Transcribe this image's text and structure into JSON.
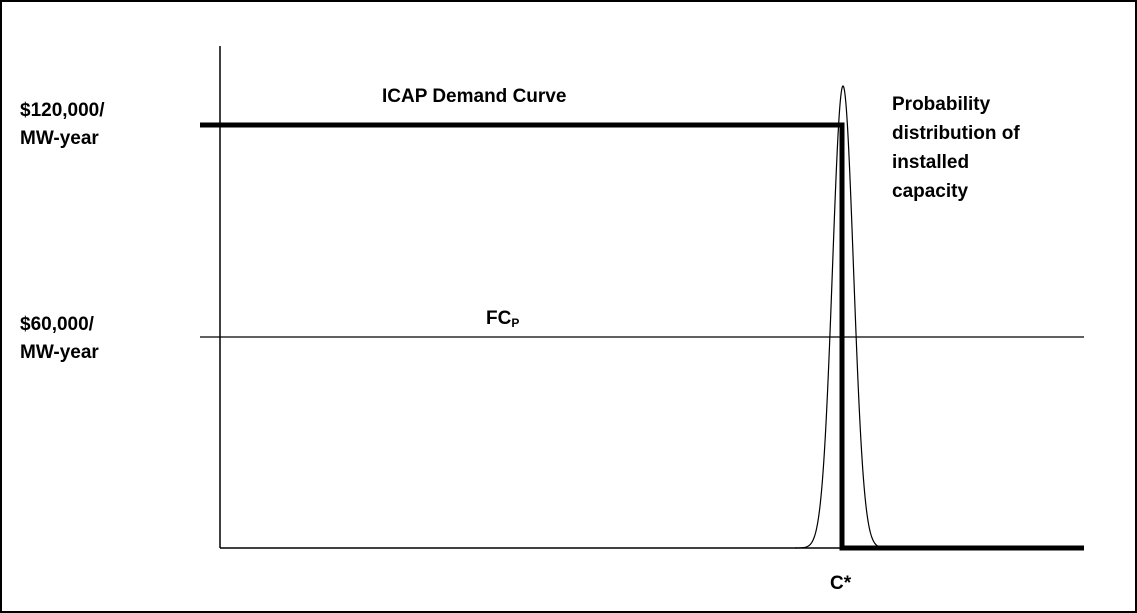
{
  "chart_data": {
    "type": "line",
    "title": "",
    "xlabel": "",
    "ylabel": "",
    "y_ticks": [
      {
        "value": 120000,
        "line1": "$120,000/",
        "line2": "MW-year"
      },
      {
        "value": 60000,
        "line1": "$60,000/",
        "line2": "MW-year"
      }
    ],
    "x_tick": {
      "label": "C*"
    },
    "series": [
      {
        "name": "ICAP Demand Curve",
        "style": "thick-step",
        "color": "#000000"
      },
      {
        "name": "FC",
        "name_subscript": "P",
        "style": "thin-horizontal",
        "value": 60000,
        "color": "#000000"
      },
      {
        "name": "Probability distribution of installed capacity",
        "style": "bell-curve",
        "color": "#000000"
      }
    ],
    "annotations": {
      "demand_curve": "ICAP Demand Curve",
      "fc_main": "FC",
      "fc_sub": "P",
      "distribution": [
        "Probability",
        "distribution of",
        "installed",
        "capacity"
      ]
    },
    "grid": false,
    "legend": "none"
  }
}
